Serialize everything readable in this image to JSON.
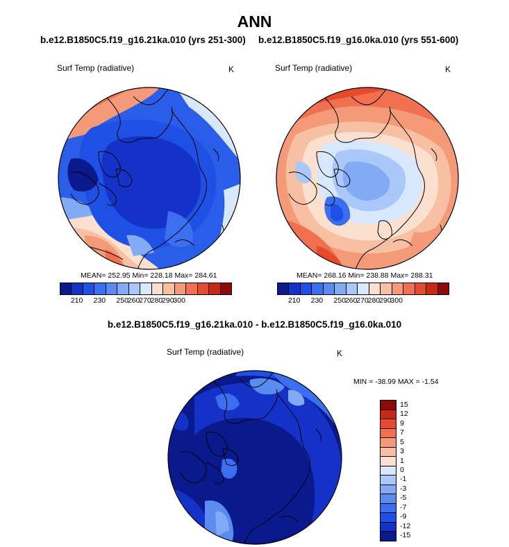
{
  "title": "ANN",
  "panels": [
    {
      "case": "b.e12.B1850C5.f19_g16.21ka.010 (yrs 251-300)",
      "variable": "Surf Temp (radiative)",
      "units": "K",
      "mean_label": "MEAN=",
      "mean": "252.95",
      "min_label": "Min=",
      "min": "228.18",
      "max_label": "Max=",
      "max": "284.61"
    },
    {
      "case": "b.e12.B1850C5.f19_g16.0ka.010 (yrs 551-600)",
      "variable": "Surf Temp (radiative)",
      "units": "K",
      "mean_label": "MEAN=",
      "mean": "268.16",
      "min_label": "Min=",
      "min": "238.88",
      "max_label": "Max=",
      "max": "288.31"
    }
  ],
  "difference": {
    "title": "b.e12.B1850C5.f19_g16.21ka.010 - b.e12.B1850C5.f19_g16.0ka.010",
    "variable": "Surf Temp (radiative)",
    "units": "K",
    "stats": "MIN = -38.99 MAX =  -1.54"
  },
  "abs_colorbar": {
    "colors": [
      "#0a1a8c",
      "#1432c8",
      "#1e50e6",
      "#3c6ef0",
      "#5a8cf0",
      "#82aaf5",
      "#aac8fa",
      "#d7e8fc",
      "#fbe0cf",
      "#f8c0a2",
      "#f59a78",
      "#f07050",
      "#e64a2a",
      "#c82814",
      "#8c0a0a"
    ],
    "ticks": [
      "210",
      "230",
      "250",
      "260",
      "270",
      "280",
      "290",
      "300"
    ]
  },
  "diff_colorbar": {
    "colors": [
      "#8c0a0a",
      "#c82814",
      "#e64a2a",
      "#f07050",
      "#f59a78",
      "#f8c0a2",
      "#fbe0cf",
      "#d7e8fc",
      "#aac8fa",
      "#82aaf5",
      "#5a8cf0",
      "#3c6ef0",
      "#1e50e6",
      "#1432c8",
      "#0a1a8c"
    ],
    "ticks": [
      "15",
      "12",
      "9",
      "7",
      "5",
      "3",
      "1",
      "0",
      "-1",
      "-3",
      "-5",
      "-7",
      "-9",
      "-12",
      "-15"
    ]
  }
}
